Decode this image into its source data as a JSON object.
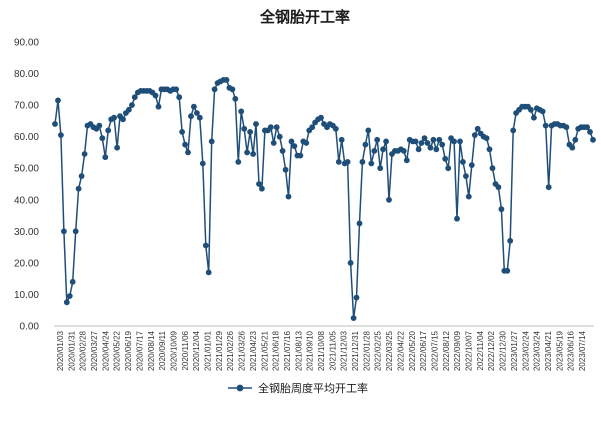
{
  "chart_data": {
    "type": "line",
    "title": "全钢胎开工率",
    "xlabel": "",
    "ylabel": "",
    "ylim": [
      0,
      90
    ],
    "ytick_labels": [
      "0.00",
      "10.00",
      "20.00",
      "30.00",
      "40.00",
      "50.00",
      "60.00",
      "70.00",
      "80.00",
      "90.00"
    ],
    "grid": false,
    "legend_position": "bottom",
    "x_tick_labels": [
      "2020/01/03",
      "2020/01/31",
      "2020/02/28",
      "2020/03/27",
      "2020/04/24",
      "2020/05/22",
      "2020/06/19",
      "2020/07/17",
      "2020/08/14",
      "2020/09/11",
      "2020/10/09",
      "2020/11/06",
      "2020/12/04",
      "2021/01/01",
      "2021/01/29",
      "2021/02/26",
      "2021/03/26",
      "2021/04/23",
      "2021/05/21",
      "2021/06/18",
      "2021/07/16",
      "2021/08/13",
      "2021/09/10",
      "2021/10/08",
      "2021/11/05",
      "2021/12/03",
      "2021/12/31",
      "2022/01/28",
      "2022/02/25",
      "2022/03/25",
      "2022/04/22",
      "2022/05/20",
      "2022/06/17",
      "2022/07/15",
      "2022/08/12",
      "2022/09/09",
      "2022/10/07",
      "2022/11/04",
      "2022/12/02",
      "2022/12/30",
      "2023/01/27",
      "2023/02/24",
      "2023/03/24",
      "2023/04/21",
      "2023/05/19",
      "2023/06/16",
      "2023/07/14"
    ],
    "series": [
      {
        "name": "全钢胎周度平均开工率",
        "color": "#1f4e79",
        "marker": "circle",
        "values": [
          64,
          71.5,
          60.5,
          30,
          7.5,
          9.5,
          14,
          30,
          43.5,
          47.5,
          54.5,
          63.5,
          64,
          63,
          62.5,
          63.5,
          59.5,
          53.5,
          62,
          65.5,
          66,
          56.5,
          66.5,
          65.5,
          67.5,
          68.5,
          70,
          72.5,
          74,
          74.5,
          74.5,
          74.5,
          74.5,
          74,
          73,
          69.5,
          75,
          75,
          75,
          74.5,
          75,
          75,
          72.5,
          61.5,
          57.5,
          55,
          66.5,
          69.5,
          67.5,
          66,
          51.5,
          25.5,
          17,
          58.5,
          75,
          77,
          77.5,
          78,
          78,
          75.5,
          75,
          72,
          52,
          68,
          62.5,
          55,
          61.5,
          54.5,
          64,
          45,
          43.5,
          62,
          62,
          63,
          58,
          63,
          60,
          55.5,
          49.5,
          41,
          58.5,
          57,
          54,
          54,
          58.5,
          58,
          62,
          63,
          64.5,
          65.5,
          66,
          64,
          63,
          64,
          63.5,
          62.5,
          52,
          59,
          51.5,
          52,
          20,
          2.5,
          9,
          32.5,
          52,
          57.5,
          62,
          51.5,
          55.5,
          59,
          50,
          56,
          58.5,
          40,
          54.5,
          55.5,
          55.5,
          56,
          55.5,
          52.5,
          59,
          58.5,
          58.5,
          56,
          58,
          59.5,
          58,
          56.5,
          59,
          56,
          59,
          57.5,
          53,
          50,
          59.5,
          58.5,
          34,
          58.5,
          52,
          47.5,
          41,
          51,
          60.5,
          62.5,
          61,
          60,
          59.5,
          56,
          50,
          45,
          44,
          37,
          17.5,
          17.5,
          27,
          62,
          67.5,
          68.5,
          69.5,
          69.5,
          69.5,
          68.5,
          66,
          69,
          68.5,
          68,
          63.5,
          44,
          63.5,
          64,
          64,
          63.5,
          63.5,
          63,
          57.5,
          56.5,
          59,
          62.5,
          63,
          63,
          63,
          61.5,
          59
        ]
      }
    ]
  }
}
